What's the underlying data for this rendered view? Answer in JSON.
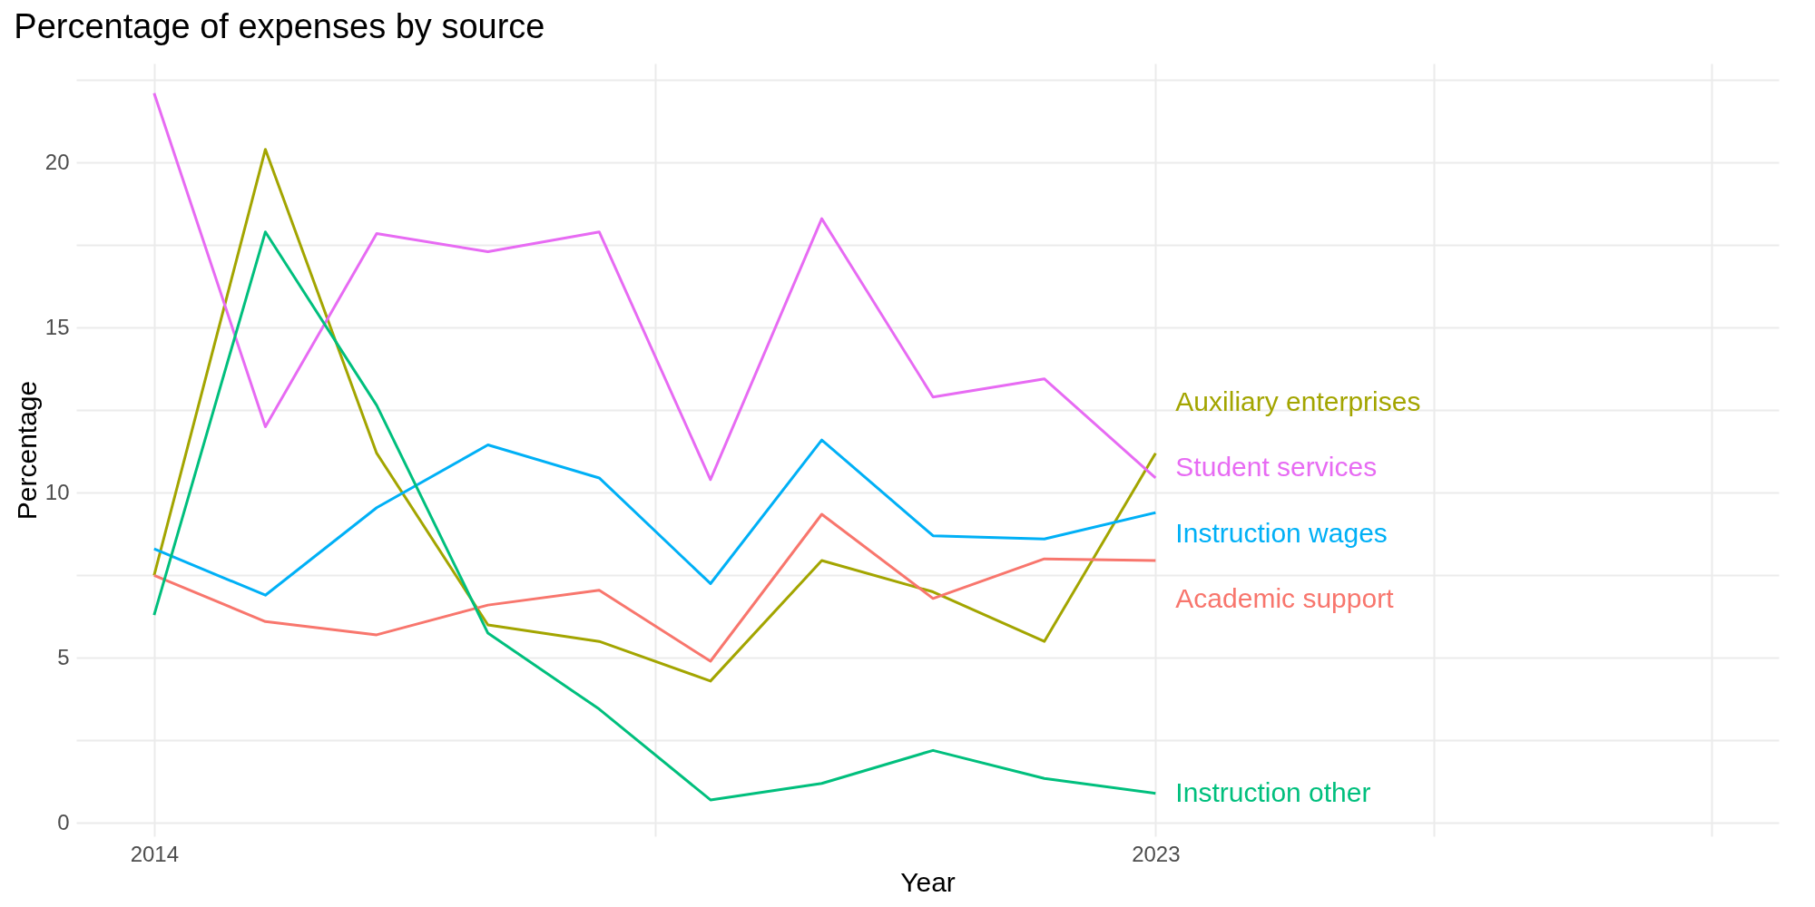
{
  "chart_data": {
    "type": "line",
    "title": "Percentage of expenses by source",
    "xlabel": "Year",
    "ylabel": "Percentage",
    "x": [
      2014,
      2015,
      2016,
      2017,
      2018,
      2019,
      2020,
      2021,
      2022,
      2023
    ],
    "series": [
      {
        "name": "Auxiliary enterprises",
        "color": "#a3a500",
        "values": [
          7.5,
          20.4,
          11.2,
          6.0,
          5.5,
          4.3,
          7.95,
          7.0,
          5.5,
          11.2
        ]
      },
      {
        "name": "Student services",
        "color": "#e76bf3",
        "values": [
          22.1,
          12.0,
          17.85,
          17.3,
          17.9,
          10.4,
          18.3,
          12.9,
          13.45,
          10.45
        ]
      },
      {
        "name": "Instruction wages",
        "color": "#00b0f6",
        "values": [
          8.3,
          6.9,
          9.55,
          11.45,
          10.45,
          7.25,
          11.6,
          8.7,
          8.6,
          9.4
        ]
      },
      {
        "name": "Academic support",
        "color": "#f8766d",
        "values": [
          7.5,
          6.1,
          5.7,
          6.6,
          7.05,
          4.9,
          9.35,
          6.8,
          8.0,
          7.95
        ]
      },
      {
        "name": "Instruction other",
        "color": "#00bf7d",
        "values": [
          6.3,
          17.9,
          12.65,
          5.75,
          3.45,
          0.7,
          1.2,
          2.2,
          1.35,
          0.9
        ]
      }
    ],
    "xlim": [
      2013.3,
      2028.6
    ],
    "ylim": [
      -0.4,
      23
    ],
    "xticks": [
      2014,
      {
        "value": 2018.5,
        "label": null
      },
      2023,
      {
        "value": 2025.5,
        "label": null
      },
      {
        "value": 2028,
        "label": null
      }
    ],
    "yticks": [
      0,
      {
        "value": 2.5,
        "label": null
      },
      5,
      {
        "value": 7.5,
        "label": null
      },
      10,
      {
        "value": 12.5,
        "label": null
      },
      15,
      {
        "value": 17.5,
        "label": null
      },
      20,
      {
        "value": 22.5,
        "label": null
      }
    ],
    "grid": true,
    "legend": false,
    "line_style": "solid",
    "marker": "none"
  }
}
